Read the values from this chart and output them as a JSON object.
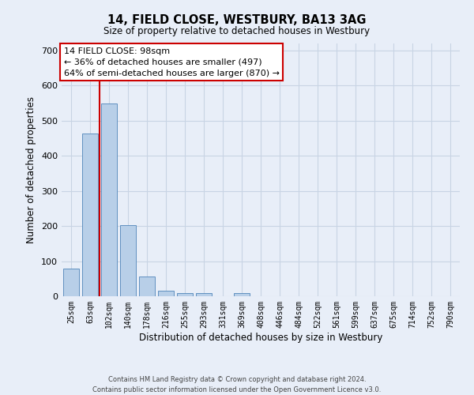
{
  "title": "14, FIELD CLOSE, WESTBURY, BA13 3AG",
  "subtitle": "Size of property relative to detached houses in Westbury",
  "xlabel": "Distribution of detached houses by size in Westbury",
  "ylabel": "Number of detached properties",
  "bar_color": "#b8cfe8",
  "bar_edge_color": "#6090c0",
  "grid_color": "#c8d4e4",
  "background_color": "#e8eef8",
  "categories": [
    "25sqm",
    "63sqm",
    "102sqm",
    "140sqm",
    "178sqm",
    "216sqm",
    "255sqm",
    "293sqm",
    "331sqm",
    "369sqm",
    "408sqm",
    "446sqm",
    "484sqm",
    "522sqm",
    "561sqm",
    "599sqm",
    "637sqm",
    "675sqm",
    "714sqm",
    "752sqm",
    "790sqm"
  ],
  "values": [
    78,
    463,
    550,
    203,
    57,
    15,
    9,
    9,
    0,
    8,
    0,
    0,
    0,
    0,
    0,
    0,
    0,
    0,
    0,
    0,
    0
  ],
  "marker_bar_index": 2,
  "marker_color": "#cc0000",
  "annotation_line1": "14 FIELD CLOSE: 98sqm",
  "annotation_line2": "← 36% of detached houses are smaller (497)",
  "annotation_line3": "64% of semi-detached houses are larger (870) →",
  "annotation_box_color": "#ffffff",
  "annotation_box_edge": "#cc0000",
  "ylim": [
    0,
    720
  ],
  "yticks": [
    0,
    100,
    200,
    300,
    400,
    500,
    600,
    700
  ],
  "footer_line1": "Contains HM Land Registry data © Crown copyright and database right 2024.",
  "footer_line2": "Contains public sector information licensed under the Open Government Licence v3.0."
}
